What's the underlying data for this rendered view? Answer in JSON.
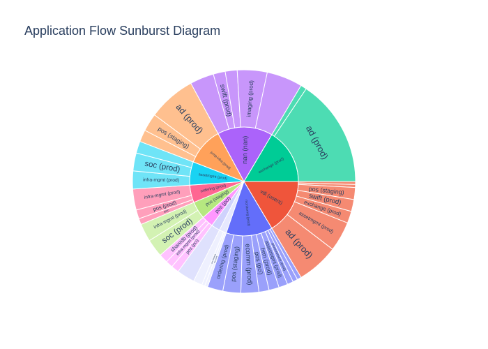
{
  "chart_data": {
    "type": "sunburst",
    "title": "Application Flow Sunburst Diagram",
    "inner": [
      {
        "label": "vdi (users)",
        "value": 19,
        "color": "#ef553b"
      },
      {
        "label": "monitoring (prod)",
        "value": 16,
        "color": "#636efa"
      },
      {
        "label": "",
        "value": 2.5,
        "color": "#e6e8fe"
      },
      {
        "label": "",
        "value": 3,
        "color": "#cfd2fd"
      },
      {
        "label": "pos (pci)",
        "value": 4,
        "color": "#ff97ff"
      },
      {
        "label": "pos (staging)",
        "value": 6,
        "color": "#b6e880"
      },
      {
        "label": "ordering (prod)",
        "value": 6,
        "color": "#ff6692"
      },
      {
        "label": "assetmgmt (prod)",
        "value": 8,
        "color": "#19d3f3"
      },
      {
        "label": "jump-infra (prod)",
        "value": 13,
        "color": "#ffa15a"
      },
      {
        "label": "nan (nan)",
        "value": 19,
        "color": "#ab63fa"
      },
      {
        "label": "exchange (prod)",
        "value": 19,
        "color": "#00cc96"
      }
    ],
    "outer": [
      {
        "label": "",
        "value": 0.5,
        "color": "#f58a72",
        "parent": 0
      },
      {
        "label": "",
        "value": 0.5,
        "color": "#f58a72",
        "parent": 0
      },
      {
        "label": "pos (staging)",
        "value": 2,
        "color": "#f58a72",
        "parent": 0
      },
      {
        "label": "swift (prod)",
        "value": 2,
        "color": "#f58a72",
        "parent": 0
      },
      {
        "label": "exchange (prod)",
        "value": 2,
        "color": "#f58a72",
        "parent": 0
      },
      {
        "label": "assetmgmt (prod)",
        "value": 5,
        "color": "#f58a72",
        "parent": 0
      },
      {
        "label": "ad (prod)",
        "value": 7,
        "color": "#f58a72",
        "parent": 0
      },
      {
        "label": "",
        "value": 0.7,
        "color": "#9aa0fb",
        "parent": 1
      },
      {
        "label": "",
        "value": 0.8,
        "color": "#9aa0fb",
        "parent": 1
      },
      {
        "label": "procurement (prod)",
        "value": 1,
        "color": "#9aa0fb",
        "parent": 1
      },
      {
        "label": "assetmgmt (prod)",
        "value": 1.5,
        "color": "#9aa0fb",
        "parent": 1
      },
      {
        "label": "hrm (prod)",
        "value": 1.7,
        "color": "#9aa0fb",
        "parent": 1
      },
      {
        "label": "pos (pci)",
        "value": 1.7,
        "color": "#9aa0fb",
        "parent": 1
      },
      {
        "label": "ecomm (prod)",
        "value": 3,
        "color": "#9aa0fb",
        "parent": 1
      },
      {
        "label": "pos (staging)",
        "value": 3,
        "color": "#9aa0fb",
        "parent": 1
      },
      {
        "label": "ordering (prod)",
        "value": 2.6,
        "color": "#9aa0fb",
        "parent": 1
      },
      {
        "label": "nan (nan)",
        "value": 0.5,
        "color": "#eef0fe",
        "parent": 2
      },
      {
        "label": "pos (staging)",
        "value": 0.5,
        "color": "#eef0fe",
        "parent": 2
      },
      {
        "label": "",
        "value": 1.5,
        "color": "#eef0fe",
        "parent": 2
      },
      {
        "label": "",
        "value": 3,
        "color": "#dfe1fd",
        "parent": 3
      },
      {
        "label": "pos (pci)",
        "value": 1.3,
        "color": "#ffc2ff",
        "parent": 4
      },
      {
        "label": "infra-mgmt (prod)",
        "value": 1.2,
        "color": "#ffc2ff",
        "parent": 4
      },
      {
        "label": "sharedb (prod)",
        "value": 1.5,
        "color": "#ffc2ff",
        "parent": 4
      },
      {
        "label": "soc (prod)",
        "value": 3,
        "color": "#d3f2b3",
        "parent": 5
      },
      {
        "label": "infra-mgmt (prod)",
        "value": 3,
        "color": "#d3f2b3",
        "parent": 5
      },
      {
        "label": "soc",
        "value": 1,
        "color": "#ff9fbb",
        "parent": 6
      },
      {
        "label": "pos (prod)",
        "value": 1.5,
        "color": "#ff9fbb",
        "parent": 6
      },
      {
        "label": "infra-mgmt (prod)",
        "value": 3.5,
        "color": "#ff9fbb",
        "parent": 6
      },
      {
        "label": "infra-mgmt (prod)",
        "value": 3,
        "color": "#6fe4f7",
        "parent": 7
      },
      {
        "label": "soc (prod)",
        "value": 3,
        "color": "#6fe4f7",
        "parent": 7
      },
      {
        "label": "",
        "value": 2,
        "color": "#6fe4f7",
        "parent": 7
      },
      {
        "label": "",
        "value": 2,
        "color": "#ffc08f",
        "parent": 8
      },
      {
        "label": "pos (staging)",
        "value": 3,
        "color": "#ffc08f",
        "parent": 8
      },
      {
        "label": "ad (prod)",
        "value": 8,
        "color": "#ffc08f",
        "parent": 8
      },
      {
        "label": "",
        "value": 4,
        "color": "#c896fb",
        "parent": 9
      },
      {
        "label": "swift (prod)",
        "value": 2,
        "color": "#c896fb",
        "parent": 9
      },
      {
        "label": "",
        "value": 2,
        "color": "#c896fb",
        "parent": 9
      },
      {
        "label": "imaging (prod)",
        "value": 5,
        "color": "#c896fb",
        "parent": 9
      },
      {
        "label": "",
        "value": 6,
        "color": "#c896fb",
        "parent": 9
      },
      {
        "label": "",
        "value": 1,
        "color": "#4ddcb3",
        "parent": 10
      },
      {
        "label": "ad (prod)",
        "value": 18,
        "color": "#4ddcb3",
        "parent": 10
      }
    ]
  }
}
